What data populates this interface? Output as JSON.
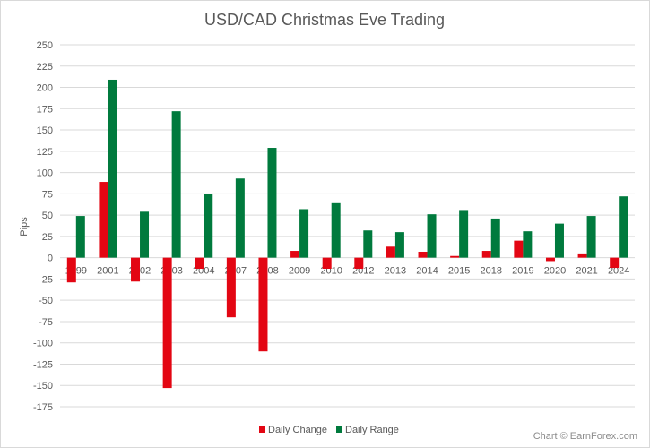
{
  "chart_data": {
    "type": "bar",
    "title": "USD/CAD Christmas Eve Trading",
    "xlabel": "",
    "ylabel": "Pips",
    "ylim": [
      -175,
      250
    ],
    "ytick_step": 25,
    "grid": true,
    "legend_position": "bottom",
    "categories": [
      "1999",
      "2001",
      "2002",
      "2003",
      "2004",
      "2007",
      "2008",
      "2009",
      "2010",
      "2012",
      "2013",
      "2014",
      "2015",
      "2018",
      "2019",
      "2020",
      "2021",
      "2024"
    ],
    "series": [
      {
        "name": "Daily Change",
        "color": "#e30613",
        "values": [
          -29,
          89,
          -28,
          -153,
          -13,
          -70,
          -110,
          8,
          -13,
          -13,
          13,
          7,
          2,
          8,
          20,
          -4,
          5,
          -12
        ]
      },
      {
        "name": "Daily Range",
        "color": "#007a3d",
        "values": [
          49,
          209,
          54,
          172,
          75,
          93,
          129,
          57,
          64,
          32,
          30,
          51,
          56,
          46,
          31,
          40,
          49,
          72
        ]
      }
    ]
  },
  "credit": "Chart © EarnForex.com"
}
